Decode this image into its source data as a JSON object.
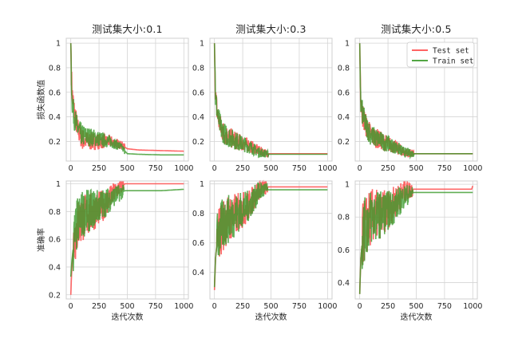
{
  "colors": {
    "test": "#ff4d4d",
    "train": "#3a9a2a",
    "grid": "#d4d4d4",
    "frame": "#cfcfcf"
  },
  "chart_data": [
    {
      "type": "line",
      "title": "测试集大小:0.1",
      "ylabel": "损失函数值",
      "xlabel": "",
      "xlim": [
        -40,
        1040
      ],
      "ylim": [
        0.04,
        1.04
      ],
      "xticks": [
        0,
        250,
        500,
        750,
        1000
      ],
      "yticks": [
        0.2,
        0.4,
        0.6,
        0.8,
        1.0
      ],
      "series": [
        {
          "name": "Test set",
          "values": [
            [
              0,
              1.0
            ],
            [
              10,
              0.6
            ],
            [
              30,
              0.45
            ],
            [
              60,
              0.3
            ],
            [
              100,
              0.22
            ],
            [
              150,
              0.2
            ],
            [
              250,
              0.2
            ],
            [
              350,
              0.2
            ],
            [
              450,
              0.17
            ],
            [
              500,
              0.14
            ],
            [
              600,
              0.13
            ],
            [
              800,
              0.125
            ],
            [
              1000,
              0.12
            ]
          ]
        },
        {
          "name": "Train set",
          "values": [
            [
              0,
              1.0
            ],
            [
              10,
              0.55
            ],
            [
              30,
              0.4
            ],
            [
              60,
              0.3
            ],
            [
              100,
              0.25
            ],
            [
              150,
              0.24
            ],
            [
              250,
              0.22
            ],
            [
              350,
              0.2
            ],
            [
              450,
              0.15
            ],
            [
              500,
              0.1
            ],
            [
              600,
              0.095
            ],
            [
              800,
              0.09
            ],
            [
              1000,
              0.09
            ]
          ]
        }
      ]
    },
    {
      "type": "line",
      "title": "测试集大小:0.3",
      "ylabel": "",
      "xlabel": "",
      "xlim": [
        -40,
        1040
      ],
      "ylim": [
        0.04,
        1.04
      ],
      "xticks": [
        0,
        250,
        500,
        750,
        1000
      ],
      "yticks": [
        0.2,
        0.4,
        0.6,
        0.8,
        1.0
      ],
      "series": [
        {
          "name": "Test set",
          "values": [
            [
              0,
              1.0
            ],
            [
              10,
              0.55
            ],
            [
              30,
              0.4
            ],
            [
              60,
              0.3
            ],
            [
              100,
              0.25
            ],
            [
              200,
              0.2
            ],
            [
              300,
              0.17
            ],
            [
              400,
              0.12
            ],
            [
              480,
              0.1
            ],
            [
              600,
              0.1
            ],
            [
              800,
              0.1
            ],
            [
              1000,
              0.1
            ]
          ]
        },
        {
          "name": "Train set",
          "values": [
            [
              0,
              1.0
            ],
            [
              10,
              0.55
            ],
            [
              30,
              0.4
            ],
            [
              60,
              0.3
            ],
            [
              100,
              0.25
            ],
            [
              200,
              0.2
            ],
            [
              300,
              0.16
            ],
            [
              400,
              0.11
            ],
            [
              480,
              0.095
            ],
            [
              600,
              0.095
            ],
            [
              800,
              0.095
            ],
            [
              1000,
              0.095
            ]
          ]
        }
      ]
    },
    {
      "type": "line",
      "title": "测试集大小:0.5",
      "ylabel": "",
      "xlabel": "",
      "xlim": [
        -40,
        1040
      ],
      "ylim": [
        0.04,
        1.04
      ],
      "xticks": [
        0,
        250,
        500,
        750,
        1000
      ],
      "yticks": [
        0.2,
        0.4,
        0.6,
        0.8,
        1.0
      ],
      "legend": "top-right",
      "series": [
        {
          "name": "Test set",
          "values": [
            [
              0,
              1.0
            ],
            [
              10,
              0.5
            ],
            [
              30,
              0.4
            ],
            [
              60,
              0.32
            ],
            [
              100,
              0.25
            ],
            [
              200,
              0.2
            ],
            [
              300,
              0.16
            ],
            [
              400,
              0.11
            ],
            [
              480,
              0.1
            ],
            [
              600,
              0.1
            ],
            [
              800,
              0.1
            ],
            [
              1000,
              0.1
            ]
          ]
        },
        {
          "name": "Train set",
          "values": [
            [
              0,
              1.0
            ],
            [
              10,
              0.5
            ],
            [
              30,
              0.4
            ],
            [
              60,
              0.32
            ],
            [
              100,
              0.25
            ],
            [
              200,
              0.2
            ],
            [
              300,
              0.16
            ],
            [
              400,
              0.11
            ],
            [
              480,
              0.1
            ],
            [
              600,
              0.1
            ],
            [
              800,
              0.1
            ],
            [
              1000,
              0.1
            ]
          ]
        }
      ]
    },
    {
      "type": "line",
      "title": "",
      "ylabel": "准确率",
      "xlabel": "迭代次数",
      "xlim": [
        -40,
        1040
      ],
      "ylim": [
        0.17,
        1.02
      ],
      "xticks": [
        0,
        250,
        500,
        750,
        1000
      ],
      "yticks": [
        0.2,
        0.4,
        0.6,
        0.8,
        1.0
      ],
      "series": [
        {
          "name": "Test set",
          "values": [
            [
              0,
              0.2
            ],
            [
              10,
              0.4
            ],
            [
              30,
              0.6
            ],
            [
              60,
              0.7
            ],
            [
              100,
              0.75
            ],
            [
              200,
              0.8
            ],
            [
              300,
              0.85
            ],
            [
              400,
              0.95
            ],
            [
              480,
              1.0
            ],
            [
              600,
              1.0
            ],
            [
              800,
              1.0
            ],
            [
              1000,
              1.0
            ]
          ]
        },
        {
          "name": "Train set",
          "values": [
            [
              0,
              0.33
            ],
            [
              10,
              0.45
            ],
            [
              30,
              0.6
            ],
            [
              60,
              0.72
            ],
            [
              100,
              0.78
            ],
            [
              200,
              0.82
            ],
            [
              300,
              0.86
            ],
            [
              400,
              0.92
            ],
            [
              480,
              0.95
            ],
            [
              600,
              0.95
            ],
            [
              800,
              0.95
            ],
            [
              1000,
              0.96
            ]
          ]
        }
      ]
    },
    {
      "type": "line",
      "title": "",
      "ylabel": "",
      "xlabel": "迭代次数",
      "xlim": [
        -40,
        1040
      ],
      "ylim": [
        0.22,
        1.02
      ],
      "xticks": [
        0,
        250,
        500,
        750,
        1000
      ],
      "yticks": [
        0.4,
        0.6,
        0.8,
        1.0
      ],
      "series": [
        {
          "name": "Test set",
          "values": [
            [
              0,
              0.28
            ],
            [
              10,
              0.5
            ],
            [
              30,
              0.65
            ],
            [
              60,
              0.7
            ],
            [
              100,
              0.75
            ],
            [
              200,
              0.8
            ],
            [
              300,
              0.85
            ],
            [
              400,
              0.97
            ],
            [
              480,
              0.98
            ],
            [
              600,
              0.98
            ],
            [
              800,
              0.98
            ],
            [
              1000,
              0.98
            ]
          ]
        },
        {
          "name": "Train set",
          "values": [
            [
              0,
              0.3
            ],
            [
              10,
              0.5
            ],
            [
              30,
              0.65
            ],
            [
              60,
              0.7
            ],
            [
              100,
              0.75
            ],
            [
              200,
              0.8
            ],
            [
              300,
              0.85
            ],
            [
              400,
              0.95
            ],
            [
              480,
              0.96
            ],
            [
              600,
              0.96
            ],
            [
              800,
              0.96
            ],
            [
              1000,
              0.96
            ]
          ]
        }
      ]
    },
    {
      "type": "line",
      "title": "",
      "ylabel": "",
      "xlabel": "迭代次数",
      "xlim": [
        -40,
        1040
      ],
      "ylim": [
        0.3,
        1.02
      ],
      "xticks": [
        0,
        250,
        500,
        750,
        1000
      ],
      "yticks": [
        0.4,
        0.6,
        0.8,
        1.0
      ],
      "series": [
        {
          "name": "Test set",
          "values": [
            [
              0,
              0.33
            ],
            [
              10,
              0.55
            ],
            [
              30,
              0.7
            ],
            [
              60,
              0.75
            ],
            [
              100,
              0.8
            ],
            [
              200,
              0.82
            ],
            [
              300,
              0.88
            ],
            [
              400,
              0.96
            ],
            [
              480,
              0.97
            ],
            [
              600,
              0.97
            ],
            [
              800,
              0.97
            ],
            [
              990,
              0.97
            ],
            [
              1000,
              0.99
            ]
          ]
        },
        {
          "name": "Train set",
          "values": [
            [
              0,
              0.33
            ],
            [
              10,
              0.55
            ],
            [
              30,
              0.7
            ],
            [
              60,
              0.75
            ],
            [
              100,
              0.8
            ],
            [
              200,
              0.82
            ],
            [
              300,
              0.86
            ],
            [
              400,
              0.93
            ],
            [
              480,
              0.95
            ],
            [
              600,
              0.95
            ],
            [
              800,
              0.95
            ],
            [
              1000,
              0.95
            ]
          ]
        }
      ]
    }
  ]
}
